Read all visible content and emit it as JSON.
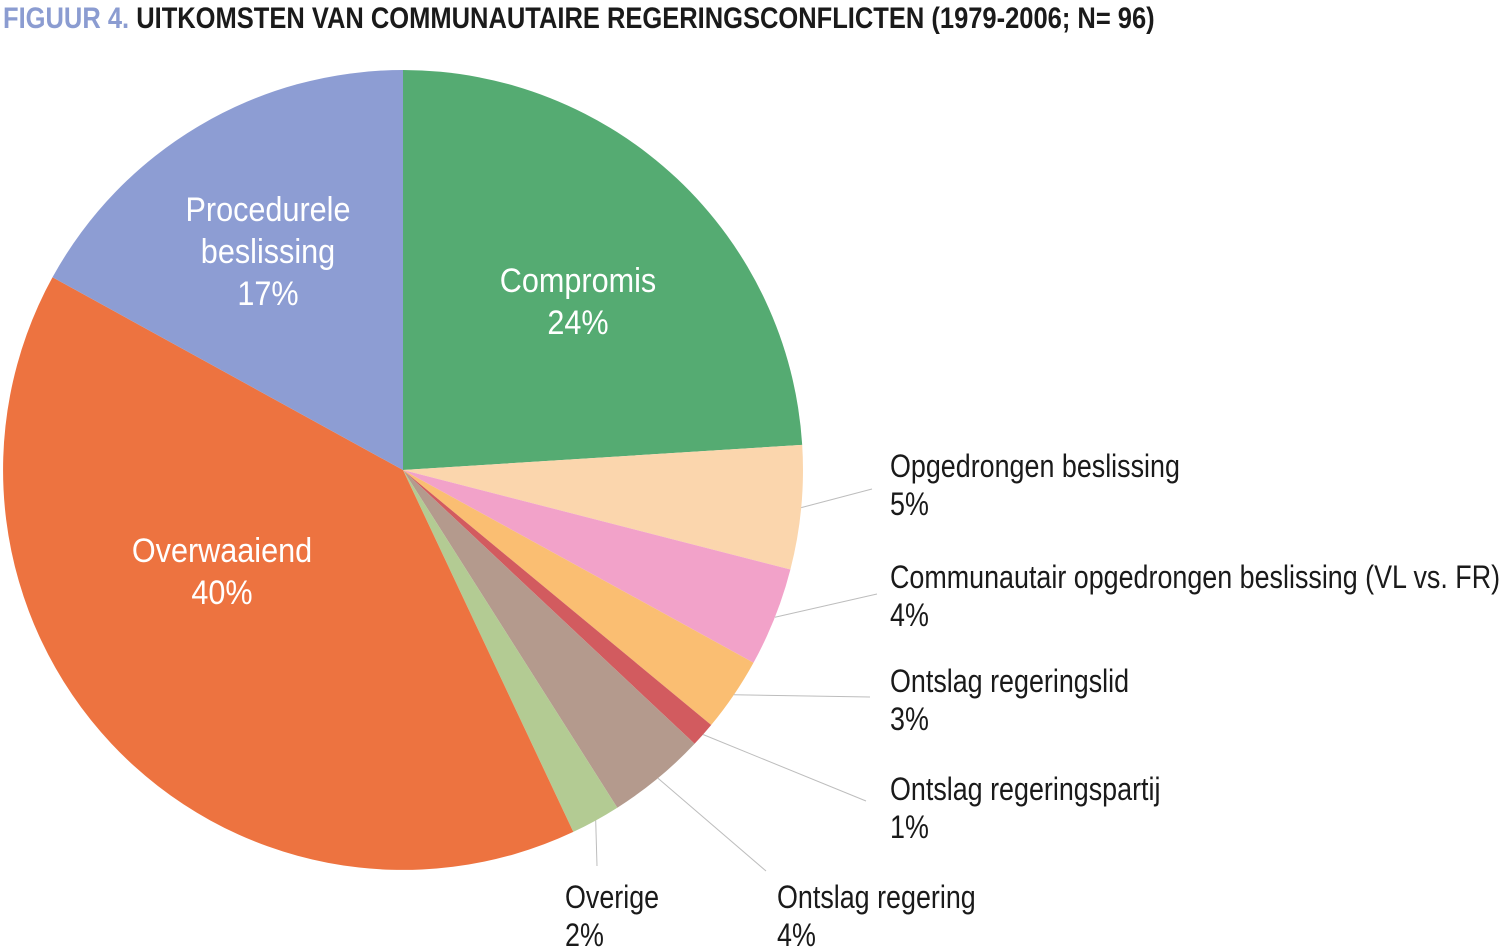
{
  "title": {
    "prefix": "FIGUUR 4.",
    "text": " UITKOMSTEN VAN COMMUNAUTAIRE REGERINGSCONFLICTEN (1979-2006; N= 96)"
  },
  "colors": {
    "title_prefix": "#8B9CD1",
    "title_text": "#1A1A1A",
    "background": "#FFFFFF",
    "leader_line": "#BDBDBD",
    "inside_label_text": "#FFFFFF",
    "outside_label_text": "#1A1A1A"
  },
  "chart_data": {
    "type": "pie",
    "title": "FIGUUR 4. UITKOMSTEN VAN COMMUNAUTAIRE REGERINGSCONFLICTEN (1979-2006; N= 96)",
    "sample_label": "N= 96",
    "period_label": "1979-2006",
    "start_angle": "12 o'clock, clockwise",
    "legend_position": "labels inside large slices, leader-line labels for small slices",
    "slices": [
      {
        "label": "Compromis",
        "value_pct": 24,
        "pct_label": "24%",
        "color": "#55AB72",
        "label_placement": "inside",
        "label_lines": [
          "Compromis"
        ]
      },
      {
        "label": "Opgedrongen beslissing",
        "value_pct": 5,
        "pct_label": "5%",
        "color": "#FBD6AD",
        "label_placement": "outside"
      },
      {
        "label": "Communautair opgedrongen beslissing (VL vs. FR)",
        "value_pct": 4,
        "pct_label": "4%",
        "color": "#F2A2C9",
        "label_placement": "outside"
      },
      {
        "label": "Ontslag regeringslid",
        "value_pct": 3,
        "pct_label": "3%",
        "color": "#FABE72",
        "label_placement": "outside"
      },
      {
        "label": "Ontslag regeringspartij",
        "value_pct": 1,
        "pct_label": "1%",
        "color": "#D25B5F",
        "label_placement": "outside"
      },
      {
        "label": "Ontslag regering",
        "value_pct": 4,
        "pct_label": "4%",
        "color": "#B49A8D",
        "label_placement": "outside"
      },
      {
        "label": "Overige",
        "value_pct": 2,
        "pct_label": "2%",
        "color": "#B3CB93",
        "label_placement": "outside"
      },
      {
        "label": "Overwaaiend",
        "value_pct": 40,
        "pct_label": "40%",
        "color": "#ED7340",
        "label_placement": "inside",
        "label_lines": [
          "Overwaaiend"
        ]
      },
      {
        "label": "Procedurele beslissing",
        "value_pct": 17,
        "pct_label": "17%",
        "color": "#8D9DD3",
        "label_placement": "inside",
        "label_lines": [
          "Procedurele",
          "beslissing"
        ]
      }
    ]
  }
}
